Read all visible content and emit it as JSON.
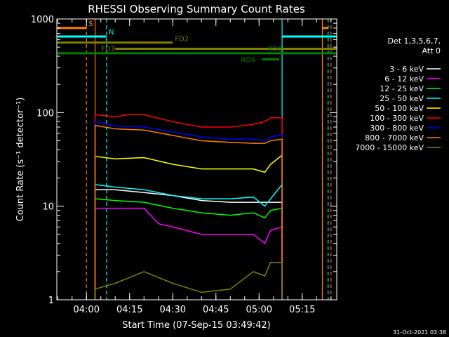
{
  "chart_data": {
    "type": "line",
    "title": "RHESSI Observing Summary Count Rates",
    "xlabel": "Start Time (07-Sep-15 03:49:42)",
    "ylabel": "Count Rate (s⁻¹ detector⁻¹)",
    "y_scale": "log",
    "ylim": [
      1,
      1000
    ],
    "y_ticks": [
      {
        "value": 1,
        "label": "1"
      },
      {
        "value": 10,
        "label": "10"
      },
      {
        "value": 100,
        "label": "100"
      },
      {
        "value": 1000,
        "label": "1000"
      }
    ],
    "xlim": [
      "03:49:42",
      "05:27:00"
    ],
    "x_ticks": [
      "04:00",
      "04:15",
      "04:30",
      "04:45",
      "05:00",
      "05:15"
    ],
    "legend": {
      "title_lines": [
        "Det 1,3,5,6,7,",
        "Att 0"
      ],
      "placement": "right"
    },
    "series": [
      {
        "name": "3 - 6 keV",
        "color": "#ffffff",
        "x": [
          "04:03",
          "04:10",
          "04:20",
          "04:30",
          "04:40",
          "04:50",
          "04:58",
          "05:04",
          "05:08"
        ],
        "values": [
          15,
          15,
          14,
          13,
          11.5,
          11,
          11,
          11,
          11
        ]
      },
      {
        "name": "6 - 12 keV",
        "color": "#ff00ff",
        "x": [
          "04:03",
          "04:10",
          "04:20",
          "04:25",
          "04:30",
          "04:40",
          "04:50",
          "04:58",
          "05:02",
          "05:04",
          "05:08"
        ],
        "values": [
          9.5,
          9.5,
          9.5,
          6.5,
          6,
          5,
          5,
          5,
          4,
          5.5,
          6
        ]
      },
      {
        "name": "12 - 25 keV",
        "color": "#00ff00",
        "x": [
          "04:03",
          "04:10",
          "04:20",
          "04:30",
          "04:40",
          "04:50",
          "04:58",
          "05:02",
          "05:04",
          "05:08"
        ],
        "values": [
          12,
          11.5,
          11,
          9.5,
          8.5,
          8,
          8.5,
          7.5,
          9,
          9.5
        ]
      },
      {
        "name": "25 - 50 keV",
        "color": "#00ffff",
        "x": [
          "04:03",
          "04:10",
          "04:20",
          "04:30",
          "04:40",
          "04:50",
          "04:58",
          "05:02",
          "05:04",
          "05:08"
        ],
        "values": [
          17,
          16,
          15,
          13,
          12,
          12,
          12.5,
          10,
          12,
          17
        ]
      },
      {
        "name": "50 - 100 keV",
        "color": "#ffff00",
        "x": [
          "04:03",
          "04:10",
          "04:20",
          "04:30",
          "04:40",
          "04:50",
          "04:58",
          "05:02",
          "05:04",
          "05:08"
        ],
        "values": [
          34,
          32,
          33,
          28,
          25,
          25,
          25,
          23,
          28,
          35
        ]
      },
      {
        "name": "100 - 300 keV",
        "color": "#ff0000",
        "x": [
          "04:03",
          "04:10",
          "04:15",
          "04:20",
          "04:30",
          "04:40",
          "04:50",
          "04:58",
          "05:02",
          "05:04",
          "05:08"
        ],
        "values": [
          95,
          90,
          95,
          95,
          80,
          70,
          70,
          75,
          80,
          88,
          88
        ]
      },
      {
        "name": "300 - 800 keV",
        "color": "#0000ff",
        "x": [
          "04:03",
          "04:10",
          "04:20",
          "04:30",
          "04:40",
          "04:50",
          "04:58",
          "05:02",
          "05:04",
          "05:08"
        ],
        "values": [
          80,
          72,
          70,
          62,
          55,
          52,
          52,
          50,
          55,
          58
        ]
      },
      {
        "name": "800 - 7000 keV",
        "color": "#ff7f00",
        "x": [
          "04:03",
          "04:10",
          "04:20",
          "04:30",
          "04:40",
          "04:50",
          "04:58",
          "05:02",
          "05:04",
          "05:08"
        ],
        "values": [
          73,
          67,
          65,
          57,
          50,
          48,
          47,
          47,
          50,
          52
        ]
      },
      {
        "name": "7000 - 15000 keV",
        "color": "#7f7f00",
        "x": [
          "04:03",
          "04:10",
          "04:20",
          "04:30",
          "04:40",
          "04:50",
          "04:58",
          "05:02",
          "05:04",
          "05:08"
        ],
        "values": [
          1.3,
          1.5,
          2,
          1.5,
          1.2,
          1.3,
          2,
          1.8,
          2.5,
          2.5
        ]
      }
    ],
    "state_bars": [
      {
        "label": "S",
        "color": "#ff7f00",
        "y": 800,
        "segments": [
          [
            "03:49:42",
            "04:00"
          ],
          [
            "05:22",
            "05:24"
          ]
        ]
      },
      {
        "label": "N",
        "color": "#00ffff",
        "y": 650,
        "segments": [
          [
            "03:49:42",
            "04:07"
          ],
          [
            "05:08",
            "05:27"
          ]
        ]
      },
      {
        "label": "FD2",
        "color": "#7f7f00",
        "y": 560,
        "segments": [
          [
            "03:49:42",
            "04:30"
          ]
        ]
      },
      {
        "label": "FD3",
        "color": "#7f7f00",
        "y": 480,
        "segments": [
          [
            "04:10",
            "05:27"
          ]
        ]
      },
      {
        "label": "RD0",
        "color": "#008000",
        "y": 430,
        "segments": [
          [
            "03:49:42",
            "05:27"
          ]
        ]
      },
      {
        "label": "RD6",
        "color": "#008000",
        "y": 370,
        "segments": [
          [
            "05:01",
            "05:07"
          ]
        ]
      }
    ],
    "vertical_markers": [
      {
        "color": "#ff7f00",
        "style": "dashed",
        "x": "04:00"
      },
      {
        "color": "#00ffff",
        "style": "dashed",
        "x": "04:07"
      },
      {
        "color": "#ff7f00",
        "style": "solid",
        "x": "04:03"
      },
      {
        "color": "#00ffff",
        "style": "solid",
        "x": "05:08"
      },
      {
        "color": "#ff7f00",
        "style": "solid",
        "x": "05:22"
      },
      {
        "color": "#00ffff",
        "style": "dashed",
        "x": "05:24"
      },
      {
        "color": "#ff7f00",
        "style": "dashed",
        "x": "05:25"
      }
    ]
  },
  "footer": {
    "date_stamp": "31-Oct-2021 03:38"
  }
}
